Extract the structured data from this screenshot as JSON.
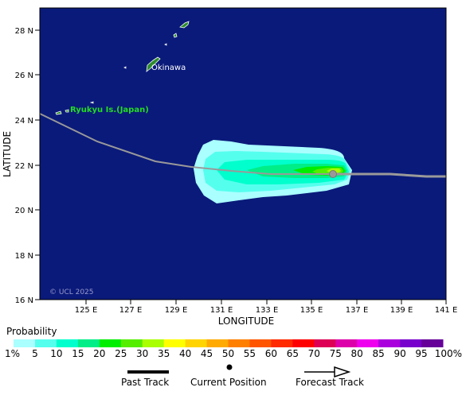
{
  "map": {
    "y_ticks": [
      "28 N",
      "26 N",
      "24 N",
      "22 N",
      "20 N",
      "18 N",
      "16 N"
    ],
    "x_ticks": [
      "125 E",
      "127 E",
      "129 E",
      "131 E",
      "133 E",
      "135 E",
      "137 E",
      "139 E",
      "141 E"
    ],
    "xlabel": "LONGITUDE",
    "ylabel": "LATITUDE",
    "place_labels": {
      "okinawa": "Okinawa",
      "ryukyu": "Ryukyu Is.(Japan)"
    },
    "copyright": "© UCL 2025",
    "ocean_color": "#0a1a7a",
    "land_color": "#2e8b2e",
    "label_color_ryukyu": "#22dd22"
  },
  "legend": {
    "title": "Probability",
    "bins": [
      {
        "label": "1%",
        "color": "#aaffff"
      },
      {
        "label": "5",
        "color": "#55ffee"
      },
      {
        "label": "10",
        "color": "#00ffcc"
      },
      {
        "label": "15",
        "color": "#00ee88"
      },
      {
        "label": "20",
        "color": "#00ee00"
      },
      {
        "label": "25",
        "color": "#55ee00"
      },
      {
        "label": "30",
        "color": "#aaff00"
      },
      {
        "label": "35",
        "color": "#ffff00"
      },
      {
        "label": "40",
        "color": "#ffd400"
      },
      {
        "label": "45",
        "color": "#ffaa00"
      },
      {
        "label": "50",
        "color": "#ff7f00"
      },
      {
        "label": "55",
        "color": "#ff5500"
      },
      {
        "label": "60",
        "color": "#ff2a00"
      },
      {
        "label": "65",
        "color": "#ff0000"
      },
      {
        "label": "70",
        "color": "#dd0055"
      },
      {
        "label": "75",
        "color": "#dd00aa"
      },
      {
        "label": "80",
        "color": "#ee00ee"
      },
      {
        "label": "85",
        "color": "#aa00dd"
      },
      {
        "label": "90",
        "color": "#7700cc"
      },
      {
        "label": "95",
        "color": "#660099"
      },
      {
        "label": "100%",
        "color": "#550055"
      }
    ]
  },
  "key": {
    "past_track": "Past Track",
    "current_position": "Current Position",
    "forecast_track": "Forecast Track"
  }
}
